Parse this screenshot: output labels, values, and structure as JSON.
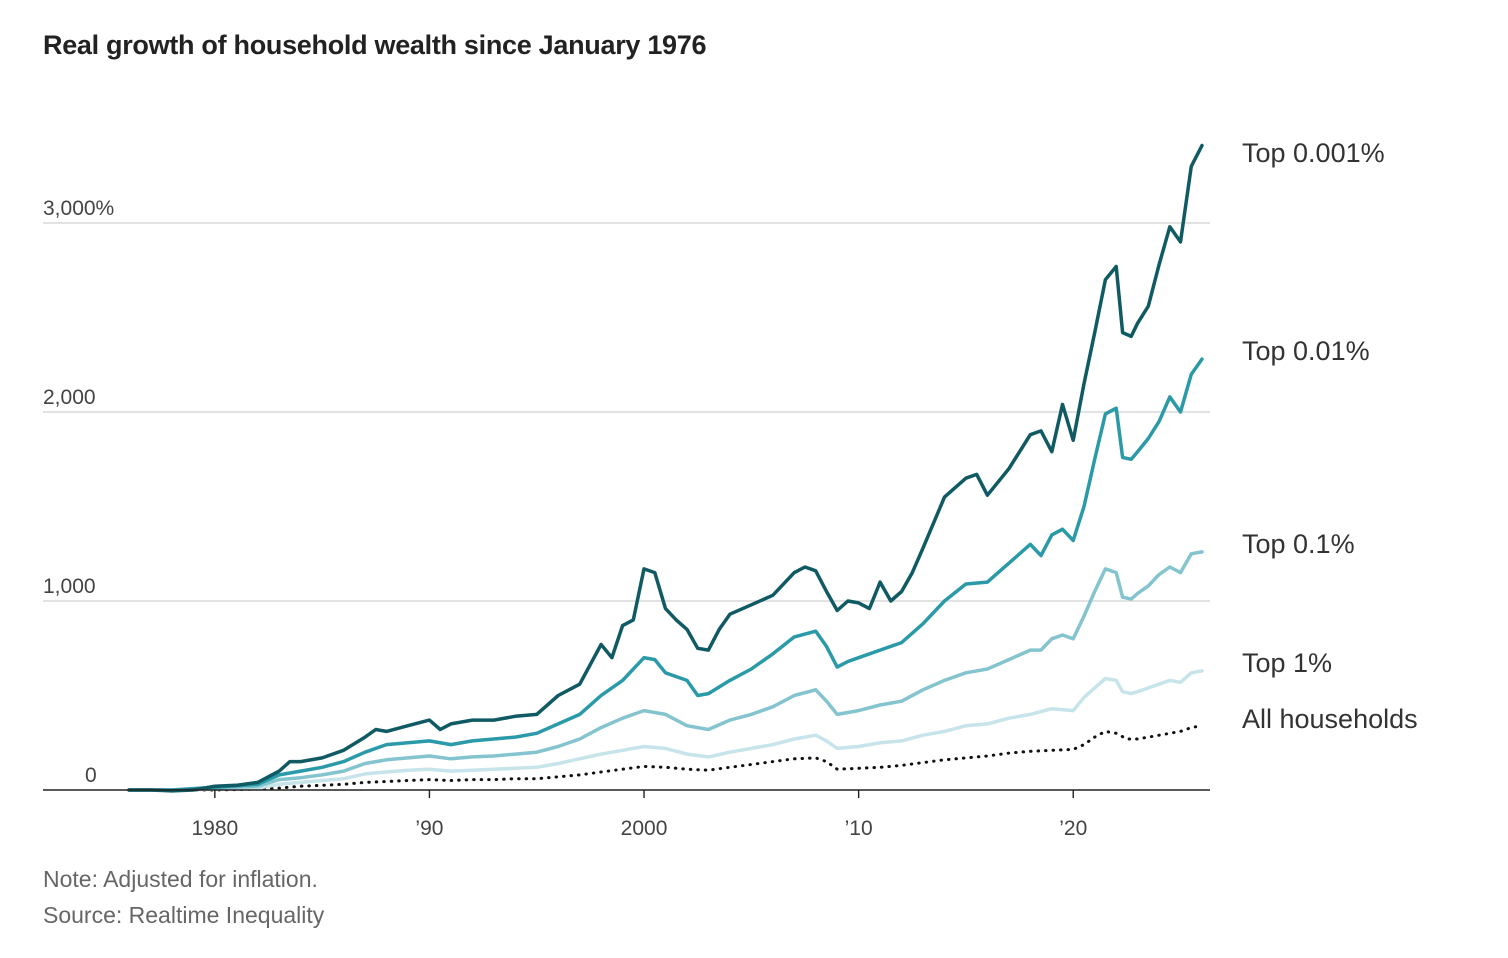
{
  "chart_data": {
    "type": "line",
    "title": "Real growth of household wealth since January 1976",
    "xlabel": "",
    "ylabel": "",
    "xlim": [
      1976,
      2026
    ],
    "ylim": [
      0,
      3300
    ],
    "x_ticks": [
      {
        "value": 1980,
        "label": "1980"
      },
      {
        "value": 1990,
        "label": "’90"
      },
      {
        "value": 2000,
        "label": "2000"
      },
      {
        "value": 2010,
        "label": "’10"
      },
      {
        "value": 2020,
        "label": "’20"
      }
    ],
    "y_ticks": [
      {
        "value": 0,
        "label": "0"
      },
      {
        "value": 1000,
        "label": "1,000"
      },
      {
        "value": 2000,
        "label": "2,000"
      },
      {
        "value": 3000,
        "label": "3,000%"
      }
    ],
    "grid": "horizontal",
    "legend": "direct labels at right end of each line",
    "series": [
      {
        "name": "Top 0.001%",
        "color": "#0f5a63",
        "dash": "solid",
        "points": [
          [
            1976,
            0
          ],
          [
            1977,
            0
          ],
          [
            1978,
            -5
          ],
          [
            1979,
            0
          ],
          [
            1980,
            20
          ],
          [
            1981,
            25
          ],
          [
            1982,
            40
          ],
          [
            1983,
            100
          ],
          [
            1983.5,
            150
          ],
          [
            1984,
            150
          ],
          [
            1985,
            170
          ],
          [
            1986,
            210
          ],
          [
            1987,
            280
          ],
          [
            1987.5,
            320
          ],
          [
            1988,
            310
          ],
          [
            1989,
            340
          ],
          [
            1990,
            370
          ],
          [
            1990.5,
            320
          ],
          [
            1991,
            350
          ],
          [
            1992,
            370
          ],
          [
            1993,
            370
          ],
          [
            1994,
            390
          ],
          [
            1995,
            400
          ],
          [
            1996,
            500
          ],
          [
            1997,
            560
          ],
          [
            1998,
            770
          ],
          [
            1998.5,
            700
          ],
          [
            1999,
            870
          ],
          [
            1999.5,
            900
          ],
          [
            2000,
            1170
          ],
          [
            2000.5,
            1150
          ],
          [
            2001,
            960
          ],
          [
            2001.5,
            900
          ],
          [
            2002,
            850
          ],
          [
            2002.5,
            750
          ],
          [
            2003,
            740
          ],
          [
            2003.5,
            850
          ],
          [
            2004,
            930
          ],
          [
            2005,
            980
          ],
          [
            2006,
            1030
          ],
          [
            2007,
            1150
          ],
          [
            2007.5,
            1180
          ],
          [
            2008,
            1160
          ],
          [
            2008.5,
            1050
          ],
          [
            2009,
            950
          ],
          [
            2009.5,
            1000
          ],
          [
            2010,
            990
          ],
          [
            2010.5,
            960
          ],
          [
            2011,
            1100
          ],
          [
            2011.5,
            1000
          ],
          [
            2012,
            1050
          ],
          [
            2012.5,
            1150
          ],
          [
            2013,
            1280
          ],
          [
            2014,
            1550
          ],
          [
            2015,
            1650
          ],
          [
            2015.5,
            1670
          ],
          [
            2016,
            1560
          ],
          [
            2017,
            1700
          ],
          [
            2018,
            1880
          ],
          [
            2018.5,
            1900
          ],
          [
            2019,
            1790
          ],
          [
            2019.5,
            2040
          ],
          [
            2020,
            1850
          ],
          [
            2020.5,
            2150
          ],
          [
            2021,
            2420
          ],
          [
            2021.5,
            2700
          ],
          [
            2022,
            2770
          ],
          [
            2022.3,
            2420
          ],
          [
            2022.7,
            2400
          ],
          [
            2023,
            2470
          ],
          [
            2023.5,
            2560
          ],
          [
            2024,
            2780
          ],
          [
            2024.5,
            2980
          ],
          [
            2025,
            2900
          ],
          [
            2025.5,
            3300
          ],
          [
            2026,
            3410
          ]
        ]
      },
      {
        "name": "Top 0.01%",
        "color": "#2a9aa8",
        "dash": "solid",
        "points": [
          [
            1976,
            0
          ],
          [
            1978,
            0
          ],
          [
            1980,
            15
          ],
          [
            1982,
            30
          ],
          [
            1983,
            80
          ],
          [
            1984,
            100
          ],
          [
            1985,
            120
          ],
          [
            1986,
            150
          ],
          [
            1987,
            200
          ],
          [
            1988,
            240
          ],
          [
            1989,
            250
          ],
          [
            1990,
            260
          ],
          [
            1991,
            240
          ],
          [
            1992,
            260
          ],
          [
            1993,
            270
          ],
          [
            1994,
            280
          ],
          [
            1995,
            300
          ],
          [
            1996,
            350
          ],
          [
            1997,
            400
          ],
          [
            1998,
            500
          ],
          [
            1999,
            580
          ],
          [
            2000,
            700
          ],
          [
            2000.5,
            690
          ],
          [
            2001,
            620
          ],
          [
            2001.5,
            600
          ],
          [
            2002,
            580
          ],
          [
            2002.5,
            500
          ],
          [
            2003,
            510
          ],
          [
            2004,
            580
          ],
          [
            2005,
            640
          ],
          [
            2006,
            720
          ],
          [
            2007,
            810
          ],
          [
            2008,
            840
          ],
          [
            2008.5,
            760
          ],
          [
            2009,
            650
          ],
          [
            2009.5,
            680
          ],
          [
            2010,
            700
          ],
          [
            2011,
            740
          ],
          [
            2012,
            780
          ],
          [
            2013,
            880
          ],
          [
            2014,
            1000
          ],
          [
            2015,
            1090
          ],
          [
            2016,
            1100
          ],
          [
            2017,
            1200
          ],
          [
            2018,
            1300
          ],
          [
            2018.5,
            1240
          ],
          [
            2019,
            1350
          ],
          [
            2019.5,
            1380
          ],
          [
            2020,
            1320
          ],
          [
            2020.5,
            1500
          ],
          [
            2021,
            1750
          ],
          [
            2021.5,
            1990
          ],
          [
            2022,
            2020
          ],
          [
            2022.3,
            1760
          ],
          [
            2022.7,
            1750
          ],
          [
            2023,
            1790
          ],
          [
            2023.5,
            1860
          ],
          [
            2024,
            1950
          ],
          [
            2024.5,
            2080
          ],
          [
            2025,
            2000
          ],
          [
            2025.5,
            2200
          ],
          [
            2026,
            2280
          ]
        ]
      },
      {
        "name": "Top 0.1%",
        "color": "#84c4ce",
        "dash": "solid",
        "points": [
          [
            1976,
            0
          ],
          [
            1978,
            0
          ],
          [
            1980,
            10
          ],
          [
            1982,
            20
          ],
          [
            1983,
            55
          ],
          [
            1984,
            65
          ],
          [
            1985,
            80
          ],
          [
            1986,
            100
          ],
          [
            1987,
            140
          ],
          [
            1988,
            160
          ],
          [
            1989,
            170
          ],
          [
            1990,
            180
          ],
          [
            1991,
            165
          ],
          [
            1992,
            175
          ],
          [
            1993,
            180
          ],
          [
            1994,
            190
          ],
          [
            1995,
            200
          ],
          [
            1996,
            230
          ],
          [
            1997,
            270
          ],
          [
            1998,
            330
          ],
          [
            1999,
            380
          ],
          [
            2000,
            420
          ],
          [
            2001,
            400
          ],
          [
            2002,
            340
          ],
          [
            2003,
            320
          ],
          [
            2004,
            370
          ],
          [
            2005,
            400
          ],
          [
            2006,
            440
          ],
          [
            2007,
            500
          ],
          [
            2008,
            530
          ],
          [
            2008.5,
            470
          ],
          [
            2009,
            400
          ],
          [
            2010,
            420
          ],
          [
            2011,
            450
          ],
          [
            2012,
            470
          ],
          [
            2013,
            530
          ],
          [
            2014,
            580
          ],
          [
            2015,
            620
          ],
          [
            2016,
            640
          ],
          [
            2017,
            690
          ],
          [
            2018,
            740
          ],
          [
            2018.5,
            740
          ],
          [
            2019,
            800
          ],
          [
            2019.5,
            820
          ],
          [
            2020,
            800
          ],
          [
            2020.5,
            920
          ],
          [
            2021,
            1050
          ],
          [
            2021.5,
            1170
          ],
          [
            2022,
            1150
          ],
          [
            2022.3,
            1020
          ],
          [
            2022.7,
            1010
          ],
          [
            2023,
            1040
          ],
          [
            2023.5,
            1080
          ],
          [
            2024,
            1140
          ],
          [
            2024.5,
            1180
          ],
          [
            2025,
            1150
          ],
          [
            2025.5,
            1250
          ],
          [
            2026,
            1260
          ]
        ]
      },
      {
        "name": "Top 1%",
        "color": "#c6e4ea",
        "dash": "solid",
        "points": [
          [
            1976,
            0
          ],
          [
            1978,
            0
          ],
          [
            1980,
            5
          ],
          [
            1982,
            10
          ],
          [
            1983,
            30
          ],
          [
            1984,
            40
          ],
          [
            1985,
            50
          ],
          [
            1986,
            60
          ],
          [
            1987,
            85
          ],
          [
            1988,
            95
          ],
          [
            1989,
            105
          ],
          [
            1990,
            110
          ],
          [
            1991,
            100
          ],
          [
            1992,
            105
          ],
          [
            1993,
            110
          ],
          [
            1994,
            115
          ],
          [
            1995,
            120
          ],
          [
            1996,
            140
          ],
          [
            1997,
            165
          ],
          [
            1998,
            190
          ],
          [
            1999,
            210
          ],
          [
            2000,
            230
          ],
          [
            2001,
            220
          ],
          [
            2002,
            190
          ],
          [
            2003,
            175
          ],
          [
            2004,
            200
          ],
          [
            2005,
            220
          ],
          [
            2006,
            240
          ],
          [
            2007,
            270
          ],
          [
            2008,
            290
          ],
          [
            2008.5,
            260
          ],
          [
            2009,
            220
          ],
          [
            2010,
            230
          ],
          [
            2011,
            250
          ],
          [
            2012,
            260
          ],
          [
            2013,
            290
          ],
          [
            2014,
            310
          ],
          [
            2015,
            340
          ],
          [
            2016,
            350
          ],
          [
            2017,
            380
          ],
          [
            2018,
            400
          ],
          [
            2019,
            430
          ],
          [
            2020,
            420
          ],
          [
            2020.5,
            490
          ],
          [
            2021,
            540
          ],
          [
            2021.5,
            590
          ],
          [
            2022,
            580
          ],
          [
            2022.3,
            520
          ],
          [
            2022.7,
            510
          ],
          [
            2023,
            520
          ],
          [
            2024,
            560
          ],
          [
            2024.5,
            580
          ],
          [
            2025,
            570
          ],
          [
            2025.5,
            620
          ],
          [
            2026,
            630
          ]
        ]
      },
      {
        "name": "All households",
        "color": "#111111",
        "dash": "dotted",
        "points": [
          [
            1976,
            0
          ],
          [
            1978,
            0
          ],
          [
            1980,
            0
          ],
          [
            1982,
            5
          ],
          [
            1983,
            10
          ],
          [
            1984,
            20
          ],
          [
            1985,
            25
          ],
          [
            1986,
            30
          ],
          [
            1987,
            40
          ],
          [
            1988,
            45
          ],
          [
            1989,
            50
          ],
          [
            1990,
            55
          ],
          [
            1991,
            50
          ],
          [
            1992,
            55
          ],
          [
            1993,
            55
          ],
          [
            1994,
            60
          ],
          [
            1995,
            60
          ],
          [
            1996,
            70
          ],
          [
            1997,
            80
          ],
          [
            1998,
            95
          ],
          [
            1999,
            110
          ],
          [
            2000,
            125
          ],
          [
            2001,
            120
          ],
          [
            2002,
            110
          ],
          [
            2003,
            105
          ],
          [
            2004,
            120
          ],
          [
            2005,
            135
          ],
          [
            2006,
            150
          ],
          [
            2007,
            165
          ],
          [
            2008,
            170
          ],
          [
            2008.5,
            150
          ],
          [
            2009,
            110
          ],
          [
            2010,
            115
          ],
          [
            2011,
            120
          ],
          [
            2012,
            130
          ],
          [
            2013,
            145
          ],
          [
            2014,
            160
          ],
          [
            2015,
            170
          ],
          [
            2016,
            180
          ],
          [
            2017,
            195
          ],
          [
            2018,
            205
          ],
          [
            2019,
            210
          ],
          [
            2020,
            215
          ],
          [
            2020.5,
            240
          ],
          [
            2021,
            280
          ],
          [
            2021.5,
            310
          ],
          [
            2022,
            300
          ],
          [
            2022.5,
            270
          ],
          [
            2023,
            270
          ],
          [
            2024,
            290
          ],
          [
            2024.5,
            300
          ],
          [
            2025,
            310
          ],
          [
            2025.5,
            330
          ],
          [
            2026,
            340
          ]
        ]
      }
    ],
    "notes": [
      "Note: Adjusted for inflation.",
      "Source: Realtime Inequality"
    ]
  }
}
